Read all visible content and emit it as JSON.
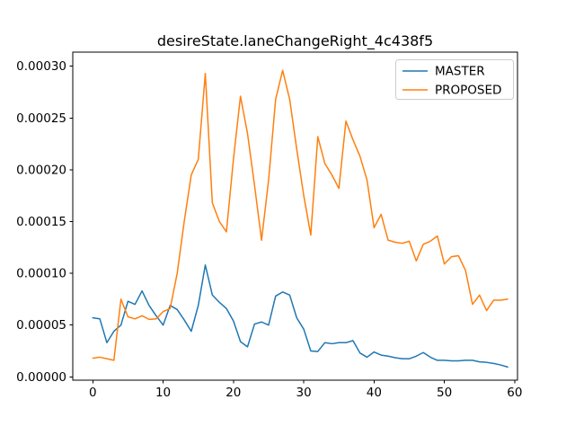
{
  "chart_data": {
    "type": "line",
    "title": "desireState.laneChangeRight_4c438f5",
    "xlabel": "",
    "ylabel": "",
    "grid": false,
    "legend_position": "upper right",
    "xlim": [
      -2.85,
      60.4
    ],
    "ylim": [
      -3.2e-06,
      0.0003136
    ],
    "xticks": [
      0,
      10,
      20,
      30,
      40,
      50,
      60
    ],
    "xtick_labels": [
      "0",
      "10",
      "20",
      "30",
      "40",
      "50",
      "60"
    ],
    "yticks": [
      0.0,
      5e-05,
      0.0001,
      0.00015,
      0.0002,
      0.00025,
      0.0003
    ],
    "ytick_labels": [
      "0.00000",
      "0.00005",
      "0.00010",
      "0.00015",
      "0.00020",
      "0.00025",
      "0.00030"
    ],
    "x": [
      0,
      1,
      2,
      3,
      4,
      5,
      6,
      7,
      8,
      9,
      10,
      11,
      12,
      13,
      14,
      15,
      16,
      17,
      18,
      19,
      20,
      21,
      22,
      23,
      24,
      25,
      26,
      27,
      28,
      29,
      30,
      31,
      32,
      33,
      34,
      35,
      36,
      37,
      38,
      39,
      40,
      41,
      42,
      43,
      44,
      45,
      46,
      47,
      48,
      49,
      50,
      51,
      52,
      53,
      54,
      55,
      56,
      57,
      58,
      59
    ],
    "series": [
      {
        "name": "MASTER",
        "color": "#1f77b4",
        "values": [
          5.7e-05,
          5.6e-05,
          3.3e-05,
          4.4e-05,
          5e-05,
          7.3e-05,
          7e-05,
          8.3e-05,
          6.9e-05,
          5.9e-05,
          5e-05,
          6.9e-05,
          6.5e-05,
          5.5e-05,
          4.4e-05,
          6.9e-05,
          0.000108,
          7.9e-05,
          7.2e-05,
          6.6e-05,
          5.4e-05,
          3.4e-05,
          2.9e-05,
          5.1e-05,
          5.3e-05,
          5e-05,
          7.8e-05,
          8.2e-05,
          7.9e-05,
          5.7e-05,
          4.6e-05,
          2.5e-05,
          2.45e-05,
          3.3e-05,
          3.2e-05,
          3.3e-05,
          3.3e-05,
          3.5e-05,
          2.3e-05,
          1.9e-05,
          2.4e-05,
          2.1e-05,
          2e-05,
          1.85e-05,
          1.75e-05,
          1.75e-05,
          2e-05,
          2.35e-05,
          1.9e-05,
          1.6e-05,
          1.6e-05,
          1.55e-05,
          1.55e-05,
          1.6e-05,
          1.6e-05,
          1.45e-05,
          1.4e-05,
          1.3e-05,
          1.15e-05,
          9.5e-06
        ]
      },
      {
        "name": "PROPOSED",
        "color": "#ff7f0e",
        "values": [
          1.8e-05,
          1.9e-05,
          1.75e-05,
          1.6e-05,
          7.5e-05,
          5.8e-05,
          5.6e-05,
          5.9e-05,
          5.55e-05,
          5.6e-05,
          6.3e-05,
          6.6e-05,
          0.0001,
          0.00015,
          0.000195,
          0.00021,
          0.000293,
          0.000168,
          0.00015,
          0.00014,
          0.00021,
          0.000271,
          0.000235,
          0.000185,
          0.000132,
          0.00019,
          0.000268,
          0.000296,
          0.000268,
          0.00022,
          0.000175,
          0.000137,
          0.000232,
          0.000206,
          0.000195,
          0.000182,
          0.000247,
          0.000229,
          0.000213,
          0.00019,
          0.000144,
          0.000157,
          0.000132,
          0.00013,
          0.000129,
          0.000131,
          0.000112,
          0.000128,
          0.000131,
          0.000136,
          0.000109,
          0.000116,
          0.000117,
          0.000103,
          7e-05,
          7.9e-05,
          6.4e-05,
          7.4e-05,
          7.4e-05,
          7.5e-05
        ]
      }
    ]
  }
}
